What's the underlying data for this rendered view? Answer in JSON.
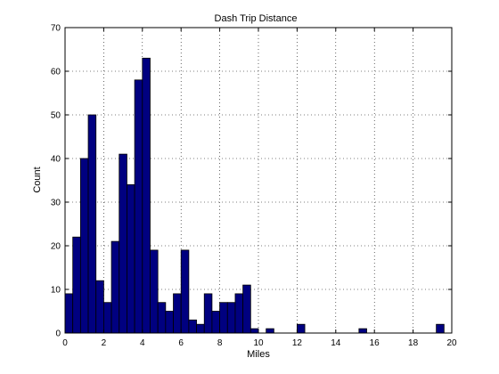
{
  "chart_data": {
    "type": "bar",
    "title": "Dash Trip Distance",
    "xlabel": "Miles",
    "ylabel": "Count",
    "xlim": [
      0,
      20
    ],
    "ylim": [
      0,
      70
    ],
    "grid": true,
    "bar_color": "#000080",
    "bar_edge_color": "#000000",
    "x_ticks": [
      "0",
      "2",
      "4",
      "6",
      "8",
      "10",
      "12",
      "14",
      "16",
      "18",
      "20"
    ],
    "y_ticks": [
      "0",
      "10",
      "20",
      "30",
      "40",
      "50",
      "60",
      "70"
    ],
    "bin_edges_start": [
      0.0,
      0.4,
      0.8,
      1.2,
      1.6,
      2.0,
      2.4,
      2.8,
      3.2,
      3.6,
      4.0,
      4.4,
      4.8,
      5.2,
      5.6,
      6.0,
      6.4,
      6.8,
      7.2,
      7.6,
      8.0,
      8.4,
      8.8,
      9.2,
      9.6,
      10.0,
      10.4,
      10.8,
      11.2,
      11.6,
      12.0,
      12.4,
      12.8,
      13.2,
      13.6,
      14.0,
      14.4,
      14.8,
      15.2,
      15.6,
      16.0,
      16.4,
      16.8,
      17.2,
      17.6,
      18.0,
      18.4,
      18.8,
      19.2,
      19.6
    ],
    "bin_width": 0.4,
    "values": [
      9,
      22,
      40,
      50,
      12,
      7,
      21,
      41,
      34,
      58,
      63,
      19,
      7,
      5,
      9,
      19,
      3,
      2,
      9,
      5,
      7,
      7,
      9,
      11,
      1,
      0,
      1,
      0,
      0,
      0,
      2,
      0,
      0,
      0,
      0,
      0,
      0,
      0,
      1,
      0,
      0,
      0,
      0,
      0,
      0,
      0,
      0,
      0,
      2,
      0
    ]
  }
}
